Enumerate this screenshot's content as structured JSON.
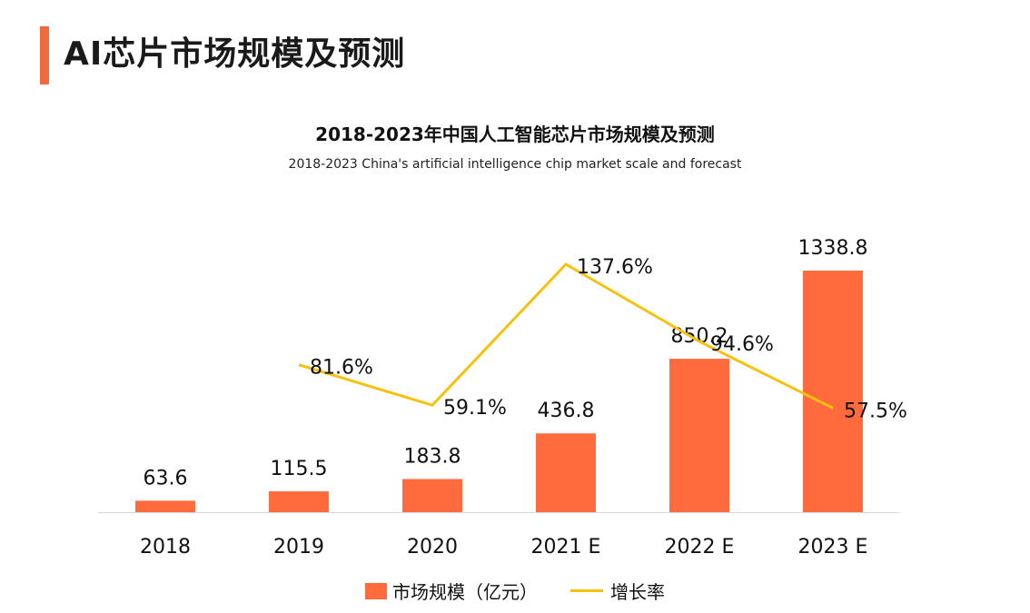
{
  "page": {
    "title": "AI芯片市场规模及预测"
  },
  "colors": {
    "accent": "#F06A3E",
    "bar": "#FF6B3D",
    "line": "#F7C10E",
    "axis": "#d9d9d9"
  },
  "chart_data": {
    "type": "bar",
    "title": "2018-2023年中国人工智能芯片市场规模及预测",
    "subtitle": "2018-2023 China's artificial intelligence chip market scale and forecast",
    "categories": [
      "2018",
      "2019",
      "2020",
      "2021 E",
      "2022 E",
      "2023 E"
    ],
    "series": [
      {
        "name": "市场规模（亿元）",
        "type": "bar",
        "values": [
          63.6,
          115.5,
          183.8,
          436.8,
          850.2,
          1338.8
        ],
        "labels": [
          "63.6",
          "115.5",
          "183.8",
          "436.8",
          "850.2",
          "1338.8"
        ]
      },
      {
        "name": "增长率",
        "type": "line",
        "values": [
          null,
          81.6,
          59.1,
          137.6,
          94.6,
          57.5
        ],
        "labels": [
          "",
          "81.6%",
          "59.1%",
          "137.6%",
          "94.6%",
          "57.5%"
        ]
      }
    ],
    "ylim": [
      0,
      1338.8
    ],
    "y2lim": [
      0,
      137.6
    ],
    "grid": false,
    "legend": "bottom-center"
  }
}
